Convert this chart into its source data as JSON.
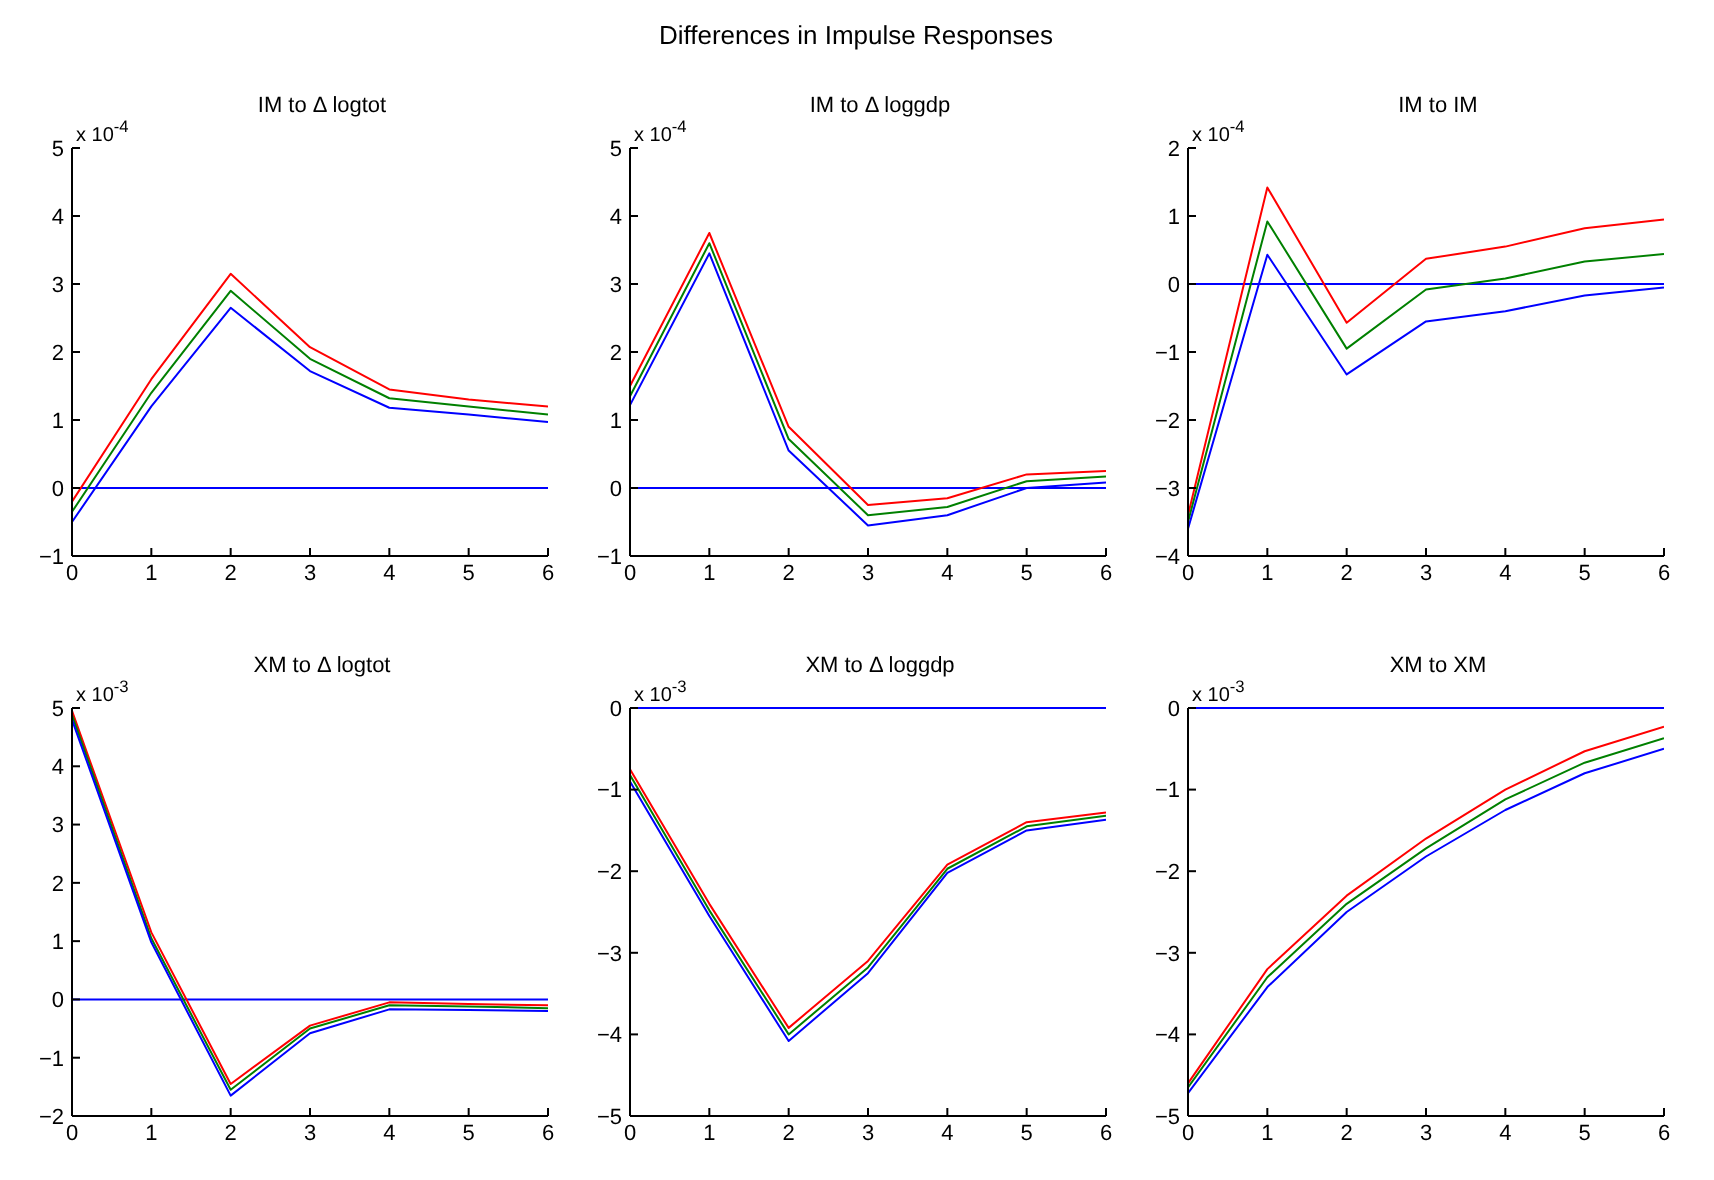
{
  "chart_data": [
    {
      "type": "line",
      "title": "IM to Δ logtot",
      "ylabel": "x 10$^{-4}$",
      "annotations": [
        "Differences in Impulse Responses"
      ],
      "x": [
        0,
        1,
        2,
        3,
        4,
        5,
        6
      ],
      "xlim": [
        0,
        6
      ],
      "xticks": [
        0,
        1,
        2,
        3,
        4,
        5,
        6
      ],
      "ylim": [
        -1,
        5
      ],
      "yticks": [
        -1,
        0,
        1,
        2,
        3,
        4,
        5
      ],
      "grid": false,
      "marker": "none",
      "ref_lines": [
        {
          "axis": "y",
          "value": 0,
          "color": "#0000ff"
        }
      ],
      "series": [
        {
          "color": "#ff0000",
          "values": [
            -0.2,
            1.6,
            3.15,
            2.07,
            1.45,
            1.3,
            1.2
          ]
        },
        {
          "color": "#008000",
          "values": [
            -0.35,
            1.4,
            2.9,
            1.9,
            1.32,
            1.2,
            1.08
          ]
        },
        {
          "color": "#0000ff",
          "values": [
            -0.5,
            1.2,
            2.65,
            1.72,
            1.18,
            1.08,
            0.97
          ]
        }
      ]
    },
    {
      "type": "line",
      "title": "IM to Δ loggdp",
      "ylabel": "x 10$^{-4}$",
      "x": [
        0,
        1,
        2,
        3,
        4,
        5,
        6
      ],
      "xlim": [
        0,
        6
      ],
      "xticks": [
        0,
        1,
        2,
        3,
        4,
        5,
        6
      ],
      "ylim": [
        -1,
        5
      ],
      "yticks": [
        -1,
        0,
        1,
        2,
        3,
        4,
        5
      ],
      "grid": false,
      "marker": "none",
      "ref_lines": [
        {
          "axis": "y",
          "value": 0,
          "color": "#0000ff"
        }
      ],
      "series": [
        {
          "color": "#ff0000",
          "values": [
            1.5,
            3.75,
            0.9,
            -0.25,
            -0.15,
            0.2,
            0.25
          ]
        },
        {
          "color": "#008000",
          "values": [
            1.35,
            3.6,
            0.72,
            -0.4,
            -0.28,
            0.1,
            0.17
          ]
        },
        {
          "color": "#0000ff",
          "values": [
            1.22,
            3.45,
            0.55,
            -0.55,
            -0.4,
            0.0,
            0.08
          ]
        }
      ]
    },
    {
      "type": "line",
      "title": "IM to IM",
      "ylabel": "x 10$^{-4}$",
      "x": [
        0,
        1,
        2,
        3,
        4,
        5,
        6
      ],
      "xlim": [
        0,
        6
      ],
      "xticks": [
        0,
        1,
        2,
        3,
        4,
        5,
        6
      ],
      "ylim": [
        -4,
        2
      ],
      "yticks": [
        -4,
        -3,
        -2,
        -1,
        0,
        1,
        2
      ],
      "grid": false,
      "marker": "none",
      "ref_lines": [
        {
          "axis": "y",
          "value": 0,
          "color": "#0000ff"
        }
      ],
      "series": [
        {
          "color": "#ff0000",
          "values": [
            -3.4,
            1.42,
            -0.57,
            0.37,
            0.55,
            0.82,
            0.95
          ]
        },
        {
          "color": "#008000",
          "values": [
            -3.5,
            0.92,
            -0.95,
            -0.08,
            0.08,
            0.33,
            0.44
          ]
        },
        {
          "color": "#0000ff",
          "values": [
            -3.6,
            0.43,
            -1.33,
            -0.55,
            -0.4,
            -0.17,
            -0.05
          ]
        }
      ]
    },
    {
      "type": "line",
      "title": "XM to Δ logtot",
      "ylabel": "x 10$^{-3}$",
      "x": [
        0,
        1,
        2,
        3,
        4,
        5,
        6
      ],
      "xlim": [
        0,
        6
      ],
      "xticks": [
        0,
        1,
        2,
        3,
        4,
        5,
        6
      ],
      "ylim": [
        -2,
        5
      ],
      "yticks": [
        -2,
        -1,
        0,
        1,
        2,
        3,
        4,
        5
      ],
      "grid": false,
      "marker": "none",
      "ref_lines": [
        {
          "axis": "y",
          "value": 0,
          "color": "#0000ff"
        }
      ],
      "series": [
        {
          "color": "#ff0000",
          "values": [
            4.95,
            1.15,
            -1.45,
            -0.45,
            -0.05,
            -0.08,
            -0.1
          ]
        },
        {
          "color": "#008000",
          "values": [
            4.88,
            1.05,
            -1.55,
            -0.5,
            -0.1,
            -0.12,
            -0.15
          ]
        },
        {
          "color": "#0000ff",
          "values": [
            4.8,
            0.98,
            -1.65,
            -0.58,
            -0.17,
            -0.18,
            -0.2
          ]
        }
      ]
    },
    {
      "type": "line",
      "title": "XM to Δ loggdp",
      "ylabel": "x 10$^{-3}$",
      "x": [
        0,
        1,
        2,
        3,
        4,
        5,
        6
      ],
      "xlim": [
        0,
        6
      ],
      "xticks": [
        0,
        1,
        2,
        3,
        4,
        5,
        6
      ],
      "ylim": [
        -5,
        0
      ],
      "yticks": [
        -5,
        -4,
        -3,
        -2,
        -1,
        0
      ],
      "grid": false,
      "marker": "none",
      "ref_lines": [
        {
          "axis": "y",
          "value": 0,
          "color": "#0000ff"
        }
      ],
      "series": [
        {
          "color": "#ff0000",
          "values": [
            -0.75,
            -2.4,
            -3.92,
            -3.1,
            -1.92,
            -1.4,
            -1.28
          ]
        },
        {
          "color": "#008000",
          "values": [
            -0.82,
            -2.48,
            -4.0,
            -3.18,
            -1.97,
            -1.45,
            -1.32
          ]
        },
        {
          "color": "#0000ff",
          "values": [
            -0.9,
            -2.55,
            -4.08,
            -3.25,
            -2.02,
            -1.5,
            -1.37
          ]
        }
      ]
    },
    {
      "type": "line",
      "title": "XM to XM",
      "ylabel": "x 10$^{-3}$",
      "x": [
        0,
        1,
        2,
        3,
        4,
        5,
        6
      ],
      "xlim": [
        0,
        6
      ],
      "xticks": [
        0,
        1,
        2,
        3,
        4,
        5,
        6
      ],
      "ylim": [
        -5,
        0
      ],
      "yticks": [
        -5,
        -4,
        -3,
        -2,
        -1,
        0
      ],
      "grid": false,
      "marker": "none",
      "ref_lines": [
        {
          "axis": "y",
          "value": 0,
          "color": "#0000ff"
        }
      ],
      "series": [
        {
          "color": "#ff0000",
          "values": [
            -4.6,
            -3.2,
            -2.3,
            -1.6,
            -1.0,
            -0.53,
            -0.23
          ]
        },
        {
          "color": "#008000",
          "values": [
            -4.65,
            -3.3,
            -2.4,
            -1.72,
            -1.12,
            -0.67,
            -0.37
          ]
        },
        {
          "color": "#0000ff",
          "values": [
            -4.72,
            -3.42,
            -2.5,
            -1.82,
            -1.25,
            -0.8,
            -0.5
          ]
        }
      ]
    }
  ]
}
